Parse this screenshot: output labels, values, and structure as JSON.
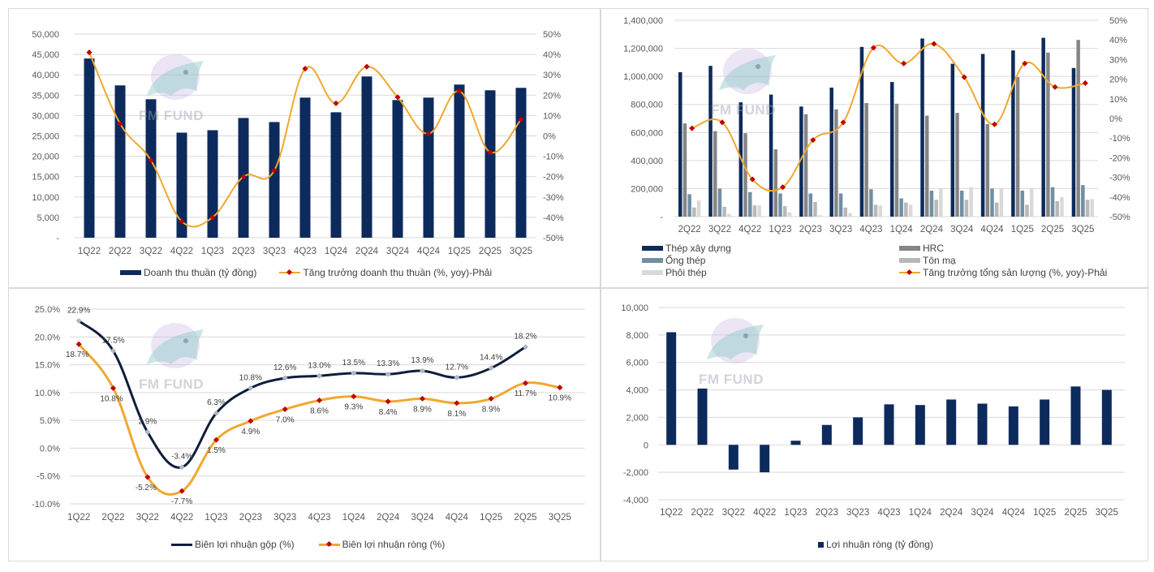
{
  "watermark": {
    "text": "FM FUND"
  },
  "chart_data": [
    {
      "id": "revenue",
      "type": "bar+line",
      "title": "",
      "categories": [
        "1Q22",
        "2Q22",
        "3Q22",
        "4Q22",
        "1Q23",
        "2Q23",
        "3Q23",
        "4Q23",
        "1Q24",
        "2Q24",
        "3Q24",
        "4Q24",
        "1Q25",
        "2Q25",
        "3Q25"
      ],
      "series": [
        {
          "name": "Doanh thu thuần (tỷ đồng)",
          "type": "bar",
          "axis": "left",
          "color": "#0d2a5c",
          "values": [
            44000,
            37400,
            34000,
            25800,
            26400,
            29400,
            28400,
            34400,
            30800,
            39600,
            33800,
            34400,
            37600,
            36200,
            36800
          ]
        },
        {
          "name": "Tăng trưởng doanh thu thuần (%, yoy)-Phải",
          "type": "line",
          "axis": "right",
          "color": "#f0a830",
          "marker_color": "#c00000",
          "values": [
            41,
            6,
            -12,
            -42,
            -40,
            -20,
            -17,
            33,
            16,
            34,
            19,
            1,
            22,
            -8,
            8
          ]
        }
      ],
      "y_left": {
        "min": 0,
        "max": 50000,
        "step": 5000,
        "ticks": [
          "-",
          "5,000",
          "10,000",
          "15,000",
          "20,000",
          "25,000",
          "30,000",
          "35,000",
          "40,000",
          "45,000",
          "50,000"
        ]
      },
      "y_right": {
        "min": -50,
        "max": 50,
        "step": 10,
        "ticks": [
          "-50%",
          "-40%",
          "-30%",
          "-20%",
          "-10%",
          "0%",
          "10%",
          "20%",
          "30%",
          "40%",
          "50%"
        ]
      },
      "grid": true,
      "legend": "bottom"
    },
    {
      "id": "volume",
      "type": "bar+line",
      "title": "",
      "categories": [
        "2Q22",
        "3Q22",
        "4Q22",
        "1Q23",
        "2Q23",
        "3Q23",
        "4Q23",
        "1Q24",
        "2Q24",
        "3Q24",
        "4Q24",
        "1Q25",
        "2Q25",
        "3Q25"
      ],
      "series": [
        {
          "name": "Thép xây dựng",
          "type": "bar",
          "axis": "left",
          "color": "#0d2a5c",
          "values": [
            1030000,
            1075000,
            815000,
            870000,
            785000,
            920000,
            1210000,
            960000,
            1270000,
            1090000,
            1160000,
            1185000,
            1275000,
            1060000
          ]
        },
        {
          "name": "HRC",
          "type": "bar",
          "axis": "left",
          "color": "#858585",
          "values": [
            665000,
            610000,
            595000,
            480000,
            730000,
            765000,
            810000,
            805000,
            720000,
            740000,
            660000,
            995000,
            1170000,
            1260000
          ]
        },
        {
          "name": "Ống thép",
          "type": "bar",
          "axis": "left",
          "color": "#6f8fa3",
          "values": [
            160000,
            200000,
            175000,
            165000,
            165000,
            165000,
            195000,
            130000,
            185000,
            185000,
            200000,
            185000,
            210000,
            225000
          ]
        },
        {
          "name": "Tôn mạ",
          "type": "bar",
          "axis": "left",
          "color": "#b8b8b8",
          "values": [
            65000,
            70000,
            80000,
            75000,
            105000,
            65000,
            85000,
            100000,
            120000,
            120000,
            100000,
            85000,
            110000,
            120000
          ]
        },
        {
          "name": "Phôi thép",
          "type": "bar",
          "axis": "left",
          "color": "#d9d9d9",
          "values": [
            115000,
            20000,
            80000,
            30000,
            10000,
            25000,
            80000,
            85000,
            200000,
            210000,
            200000,
            200000,
            140000,
            125000
          ]
        },
        {
          "name": "Tăng trưởng tổng sản lượng (%, yoy)-Phải",
          "type": "line",
          "axis": "right",
          "color": "#f0a830",
          "marker_color": "#c00000",
          "values": [
            -5,
            -2,
            -31,
            -35,
            -11,
            -2,
            36,
            28,
            38,
            21,
            -3,
            28,
            16,
            18
          ]
        }
      ],
      "y_left": {
        "min": 0,
        "max": 1400000,
        "step": 200000,
        "ticks": [
          "-",
          "200,000",
          "400,000",
          "600,000",
          "800,000",
          "1,000,000",
          "1,200,000",
          "1,400,000"
        ]
      },
      "y_right": {
        "min": -50,
        "max": 50,
        "step": 10,
        "ticks": [
          "-50%",
          "-40%",
          "-30%",
          "-20%",
          "-10%",
          "0%",
          "10%",
          "20%",
          "30%",
          "40%",
          "50%"
        ]
      },
      "grid": true,
      "legend": "bottom"
    },
    {
      "id": "margins",
      "type": "line",
      "title": "",
      "categories": [
        "1Q22",
        "2Q22",
        "3Q22",
        "4Q22",
        "1Q23",
        "2Q23",
        "3Q23",
        "4Q23",
        "1Q24",
        "2Q24",
        "3Q24",
        "4Q24",
        "1Q25",
        "2Q25",
        "3Q25"
      ],
      "series": [
        {
          "name": "Biên lợi nhuận gộp (%)",
          "color": "#0e1e3c",
          "marker_color": "#b0b8c4",
          "values": [
            22.9,
            17.5,
            2.9,
            -3.4,
            6.3,
            10.8,
            12.6,
            13.0,
            13.5,
            13.3,
            13.9,
            12.7,
            14.4,
            18.2,
            null
          ],
          "labels": [
            "22.9%",
            "17.5%",
            "2.9%",
            "-3.4%",
            "6.3%",
            "10.8%",
            "12.6%",
            "13.0%",
            "13.5%",
            "13.3%",
            "13.9%",
            "12.7%",
            "14.4%",
            "18.2%",
            ""
          ]
        },
        {
          "name": "Biên lợi nhuận ròng (%)",
          "color": "#f0a830",
          "marker_color": "#c00000",
          "values": [
            18.7,
            10.8,
            -5.2,
            -7.7,
            1.5,
            4.9,
            7.0,
            8.6,
            9.3,
            8.4,
            8.9,
            8.1,
            8.9,
            11.7,
            10.9
          ],
          "labels": [
            "18.7%",
            "10.8%",
            "-5.2%",
            "-7.7%",
            "1.5%",
            "4.9%",
            "7.0%",
            "8.6%",
            "9.3%",
            "8.4%",
            "8.9%",
            "8.1%",
            "8.9%",
            "11.7%",
            "10.9%"
          ]
        }
      ],
      "y": {
        "min": -10,
        "max": 25,
        "step": 5,
        "ticks": [
          "-10.0%",
          "-5.0%",
          "0.0%",
          "5.0%",
          "10.0%",
          "15.0%",
          "20.0%",
          "25.0%"
        ]
      },
      "grid": true,
      "legend": "bottom"
    },
    {
      "id": "net-profit",
      "type": "bar",
      "title": "",
      "categories": [
        "1Q22",
        "2Q22",
        "3Q22",
        "4Q22",
        "1Q23",
        "2Q23",
        "3Q23",
        "4Q23",
        "1Q24",
        "2Q24",
        "3Q24",
        "4Q24",
        "1Q25",
        "2Q25",
        "3Q25"
      ],
      "series": [
        {
          "name": "Lợi nhuận ròng (tỷ đồng)",
          "color": "#0d2a5c",
          "values": [
            8200,
            4100,
            -1800,
            -2000,
            300,
            1450,
            2000,
            2950,
            2900,
            3300,
            3000,
            2800,
            3300,
            4250,
            4000
          ]
        }
      ],
      "y": {
        "min": -4000,
        "max": 10000,
        "step": 2000,
        "ticks": [
          "-4,000",
          "-2,000",
          "0",
          "2,000",
          "4,000",
          "6,000",
          "8,000",
          "10,000"
        ]
      },
      "grid": true,
      "legend": "bottom"
    }
  ]
}
